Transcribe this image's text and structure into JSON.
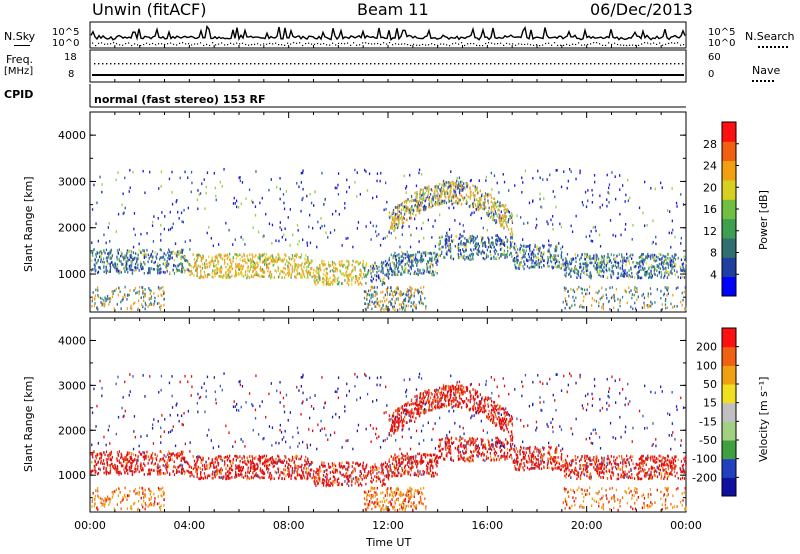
{
  "header": {
    "title": "Unwin (fitACF)",
    "beam": "Beam 11",
    "date": "06/Dec/2013"
  },
  "summary": {
    "nsky_label": "N.Sky",
    "nsky_scale_top": "10^5",
    "nsky_scale_bottom": "10^0",
    "nsearch_scale_top": "10^5",
    "nsearch_scale_bottom": "10^0",
    "nsearch_label": "N.Search",
    "freq_label": "Freq.",
    "freq_unit": "[MHz]",
    "freq_top": "18",
    "freq_bottom": "8",
    "nave_top": "60",
    "nave_bottom": "0",
    "nave_label": "Nave",
    "cpid_label": "CPID",
    "cpid_text": "normal (fast stereo) 153 RF"
  },
  "colors": {
    "power": [
      "#1f1fd0",
      "#2f5fa8",
      "#3a8a78",
      "#4aa860",
      "#9ccc40",
      "#e8d030",
      "#f0a020",
      "#f06010",
      "#e02010"
    ],
    "velocity": [
      "#2020b0",
      "#3a5cc0",
      "#40a040",
      "#80c840",
      "#c0c0c0",
      "#f0e020",
      "#f0a010",
      "#f06010",
      "#e01010"
    ],
    "power_cb": [
      "#0000ff",
      "#1f3fa0",
      "#2f6f70",
      "#3f9f50",
      "#6fbf40",
      "#d8d020",
      "#f0a010",
      "#f06010",
      "#ff1010"
    ],
    "velocity_cb": [
      "#1010a0",
      "#2040c0",
      "#40a040",
      "#a0d080",
      "#c0c0c0",
      "#f0e020",
      "#f0a010",
      "#f06010",
      "#ff1010"
    ]
  },
  "chart_data": [
    {
      "type": "heatmap",
      "name": "power",
      "ylabel": "Slant Range [km]",
      "ylim": [
        180,
        4500
      ],
      "yticks": [
        "4000",
        "3000",
        "2000",
        "1000"
      ],
      "xticks": [
        "00:00",
        "04:00",
        "08:00",
        "12:00",
        "16:00",
        "20:00",
        "00:00"
      ],
      "xlim_hours": [
        0,
        24
      ],
      "colorbar": {
        "label": "Power [dB]",
        "ticks": [
          "28",
          "24",
          "20",
          "16",
          "12",
          "8",
          "4"
        ]
      },
      "bands": [
        {
          "t0": 0,
          "t1": 4,
          "r0": 1050,
          "r1": 1550,
          "level": "mixed"
        },
        {
          "t0": 4,
          "t1": 9,
          "r0": 950,
          "r1": 1450,
          "level": "high"
        },
        {
          "t0": 9,
          "t1": 11.5,
          "r0": 950,
          "r1": 1250,
          "level": "mid"
        },
        {
          "t0": 11,
          "t1": 13.5,
          "r0": 180,
          "r1": 650,
          "level": "mid"
        },
        {
          "t0": 13,
          "t1": 16,
          "r0": 2100,
          "r1": 2500,
          "level": "high"
        },
        {
          "t0": 15,
          "t1": 18,
          "r0": 1400,
          "r1": 1800,
          "level": "mid"
        },
        {
          "t0": 18,
          "t1": 24,
          "r0": 1000,
          "r1": 1500,
          "level": "mixed"
        },
        {
          "t0": 19,
          "t1": 24,
          "r0": 450,
          "r1": 800,
          "level": "mixed"
        }
      ]
    },
    {
      "type": "heatmap",
      "name": "velocity",
      "ylabel": "Slant Range [km]",
      "ylim": [
        180,
        4500
      ],
      "yticks": [
        "4000",
        "3000",
        "2000",
        "1000"
      ],
      "xticks": [
        "00:00",
        "04:00",
        "08:00",
        "12:00",
        "16:00",
        "20:00",
        "00:00"
      ],
      "xlim_hours": [
        0,
        24
      ],
      "xlabel": "Time UT",
      "colorbar": {
        "label": "Velocity [m s⁻¹]",
        "ticks": [
          "200",
          "100",
          "50",
          "15",
          "-15",
          "-50",
          "-100",
          "-200"
        ]
      }
    }
  ]
}
